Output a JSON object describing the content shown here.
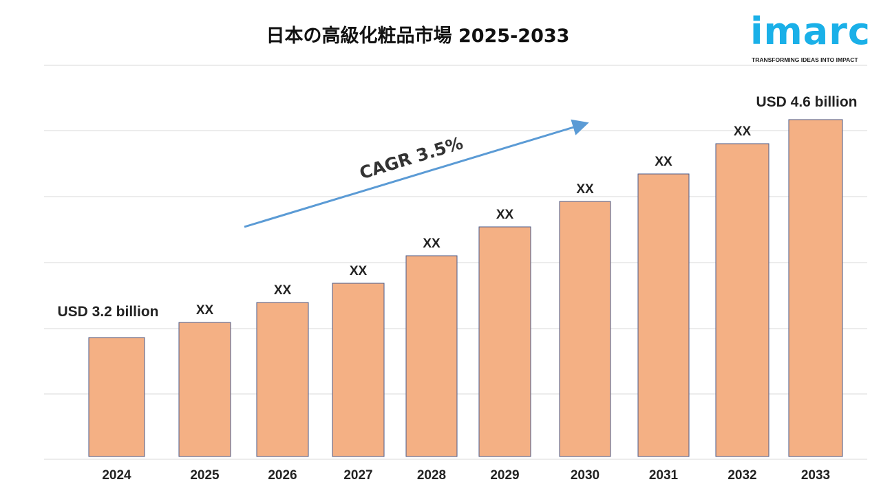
{
  "title": "日本の高級化粧品市場 2025-2033",
  "logo": {
    "text": "imarc",
    "tagline": "TRANSFORMING IDEAS INTO IMPACT",
    "color": "#1ab0e8"
  },
  "cagr_label": "CAGR 3.5%",
  "colors": {
    "bar": "#f4b084",
    "bar_border": "#4a5a8a",
    "arrow": "#5b9bd5",
    "grid": "#d9d9d9"
  },
  "chart_data": {
    "type": "bar",
    "title": "日本の高級化粧品市場 2025-2033",
    "categories": [
      "2024",
      "2025",
      "2026",
      "2027",
      "2028",
      "2029",
      "2030",
      "2031",
      "2032",
      "2033"
    ],
    "values": [
      3.2,
      null,
      null,
      null,
      null,
      null,
      null,
      null,
      null,
      4.6
    ],
    "data_labels": [
      "USD 3.2 billion",
      "XX",
      "XX",
      "XX",
      "XX",
      "XX",
      "XX",
      "XX",
      "XX",
      "USD 4.6 billion"
    ],
    "unit": "USD billion",
    "grid": true,
    "annotation": "CAGR 3.5%"
  }
}
